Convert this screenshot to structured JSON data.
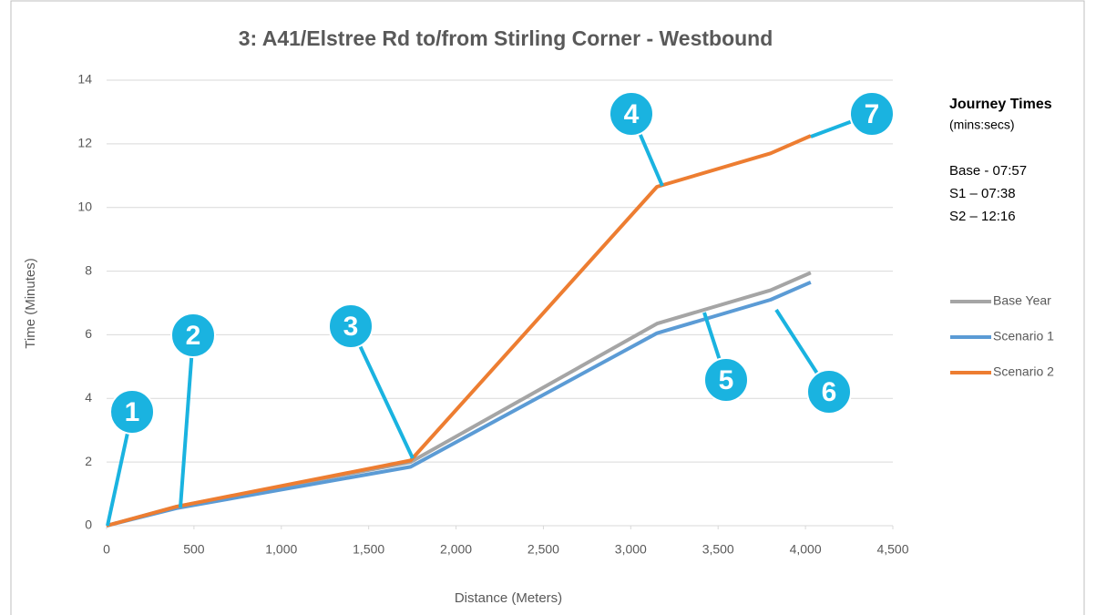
{
  "chart_data": {
    "type": "line",
    "title": "3: A41/Elstree Rd to/from Stirling Corner - Westbound",
    "x_label": "Distance  (Meters)",
    "y_label": "Time (Minutes)",
    "x": [
      0,
      400,
      1740,
      3150,
      3800,
      4030
    ],
    "series": [
      {
        "name": "Base Year",
        "color": "#a5a5a5",
        "values": [
          0,
          0.6,
          2.0,
          6.35,
          7.4,
          7.95
        ]
      },
      {
        "name": "Scenario 1",
        "color": "#5b9bd5",
        "values": [
          0,
          0.55,
          1.85,
          6.05,
          7.1,
          7.65
        ]
      },
      {
        "name": "Scenario 2",
        "color": "#ed7d31",
        "values": [
          0,
          0.6,
          2.05,
          10.65,
          11.7,
          12.25
        ]
      }
    ],
    "xlim": [
      0,
      4500
    ],
    "xticks": [
      0,
      500,
      {
        "value": 1000,
        "label": "1,000"
      },
      {
        "value": 1500,
        "label": "1,500"
      },
      {
        "value": 2000,
        "label": "2,000"
      },
      {
        "value": 2500,
        "label": "2,500"
      },
      {
        "value": 3000,
        "label": "3,000"
      },
      {
        "value": 3500,
        "label": "3,500"
      },
      {
        "value": 4000,
        "label": "4,000"
      },
      {
        "value": 4500,
        "label": "4,500"
      }
    ],
    "ylim": [
      0,
      14
    ],
    "yticks": [
      0,
      2,
      4,
      6,
      8,
      10,
      12,
      14
    ],
    "grid": true,
    "legend": "right",
    "notes": [
      "Journey Times",
      "(mins:secs)",
      "Base - 07:57",
      "S1 – 07:38",
      "S2 – 12:16"
    ],
    "annotations": [
      "1",
      "2",
      "3",
      "4",
      "5",
      "6",
      "7"
    ],
    "annotation_color": "#1ab3e0"
  }
}
